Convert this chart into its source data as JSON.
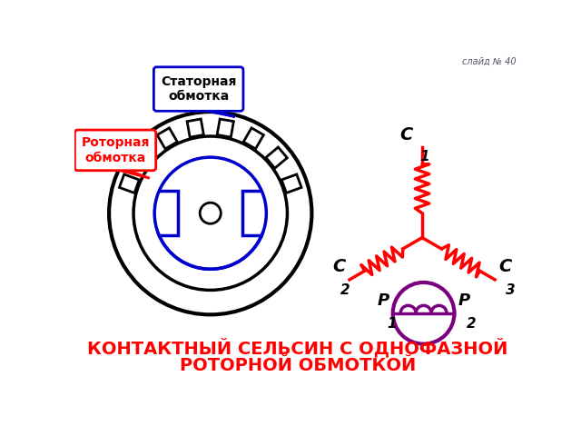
{
  "title_line1": "КОНТАКТНЫЙ СЕЛЬСИН С ОДНОФАЗНОЙ",
  "title_line2": "РОТОРНОЙ ОБМОТКОЙ",
  "slide_label": "слайд № 40",
  "color_blue": "#0000cc",
  "color_red": "#ff0000",
  "color_purple": "#7b0080",
  "color_black": "#000000",
  "color_title": "#ff0000",
  "bg_color": "#ffffff"
}
